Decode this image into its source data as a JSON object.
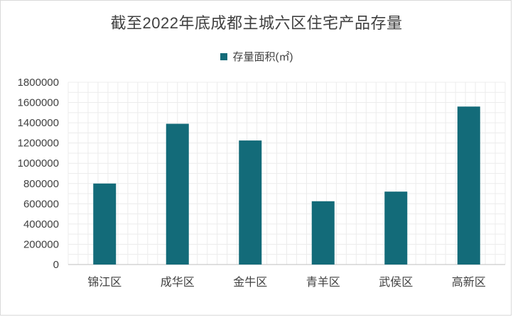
{
  "chart_data": {
    "type": "bar",
    "title": "截至2022年底成都主城六区住宅产品存量",
    "xlabel": "",
    "ylabel": "",
    "categories": [
      "锦江区",
      "成华区",
      "金牛区",
      "青羊区",
      "武侯区",
      "高新区"
    ],
    "series": [
      {
        "name": "存量面积(㎡)",
        "color": "#136b79",
        "values": [
          800000,
          1390000,
          1225000,
          625000,
          720000,
          1560000
        ]
      }
    ],
    "ylim": [
      0,
      1800000
    ],
    "yticks": [
      0,
      200000,
      400000,
      600000,
      800000,
      1000000,
      1200000,
      1400000,
      1600000,
      1800000
    ],
    "ytick_labels": [
      "0",
      "200000",
      "400000",
      "600000",
      "800000",
      "1000000",
      "1200000",
      "1400000",
      "1600000",
      "1800000"
    ],
    "grid": true,
    "legend_position": "top"
  }
}
